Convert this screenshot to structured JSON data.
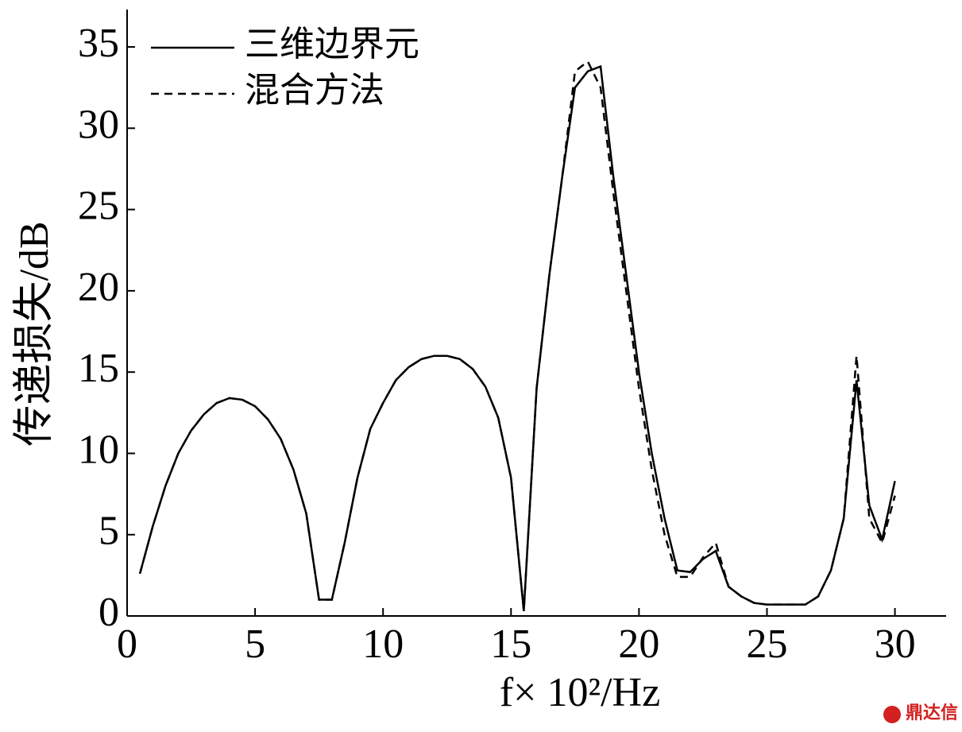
{
  "chart_data": {
    "type": "line",
    "x_label": "f× 10²/Hz",
    "y_label": "传递损失/dB",
    "watermark": "鼎达信",
    "xlim": [
      0,
      32
    ],
    "ylim": [
      0,
      37.3
    ],
    "xticks": [
      0,
      5,
      10,
      15,
      20,
      25,
      30
    ],
    "yticks": [
      0,
      5,
      10,
      15,
      20,
      25,
      30,
      35
    ],
    "grid": false,
    "legend": "upper left",
    "x": [
      0.5,
      1,
      1.5,
      2,
      2.5,
      3,
      3.5,
      4,
      4.5,
      5,
      5.5,
      6,
      6.5,
      7,
      7.5,
      8,
      8.5,
      9,
      9.5,
      10,
      10.5,
      11,
      11.5,
      12,
      12.5,
      13,
      13.5,
      14,
      14.5,
      15,
      15.5,
      16,
      16.5,
      17,
      17.5,
      18,
      18.5,
      19,
      19.5,
      20,
      20.5,
      21,
      21.5,
      22,
      22.5,
      23,
      23.5,
      24,
      24.5,
      25,
      25.5,
      26,
      26.5,
      27,
      27.5,
      28,
      28.5,
      29,
      29.5,
      30
    ],
    "series": [
      {
        "name": "三维边界元",
        "color": "#000000",
        "line_style": "solid",
        "values": [
          2.6,
          5.5,
          8,
          10,
          11.4,
          12.4,
          13.1,
          13.4,
          13.3,
          12.9,
          12.1,
          10.9,
          9,
          6.3,
          1,
          1,
          4.5,
          8.5,
          11.5,
          13.1,
          14.5,
          15.3,
          15.8,
          16,
          16,
          15.8,
          15.2,
          14.1,
          12.2,
          8.5,
          0.3,
          14,
          21,
          27,
          32.5,
          33.5,
          33.8,
          27,
          21,
          15,
          10,
          6,
          2.8,
          2.7,
          3.5,
          4,
          1.8,
          1.2,
          0.8,
          0.7,
          0.7,
          0.7,
          0.7,
          1.2,
          2.8,
          6,
          14.5,
          6.8,
          4.7,
          8.3
        ]
      },
      {
        "name": "混合方法",
        "color": "#000000",
        "line_style": "dashed",
        "values": [
          2.6,
          5.5,
          8,
          10,
          11.4,
          12.4,
          13.1,
          13.4,
          13.3,
          12.9,
          12.1,
          10.9,
          9,
          6.3,
          1,
          1,
          4.5,
          8.5,
          11.5,
          13.1,
          14.5,
          15.3,
          15.8,
          16,
          16,
          15.8,
          15.2,
          14.1,
          12.2,
          8.5,
          0.3,
          14,
          21,
          27,
          33.5,
          34.1,
          32.5,
          26,
          20,
          14,
          9,
          5,
          2.4,
          2.4,
          3.6,
          4.5,
          1.8,
          1.2,
          0.8,
          0.7,
          0.7,
          0.7,
          0.7,
          1.2,
          2.8,
          6,
          16,
          6,
          4.5,
          7.4
        ]
      }
    ]
  }
}
